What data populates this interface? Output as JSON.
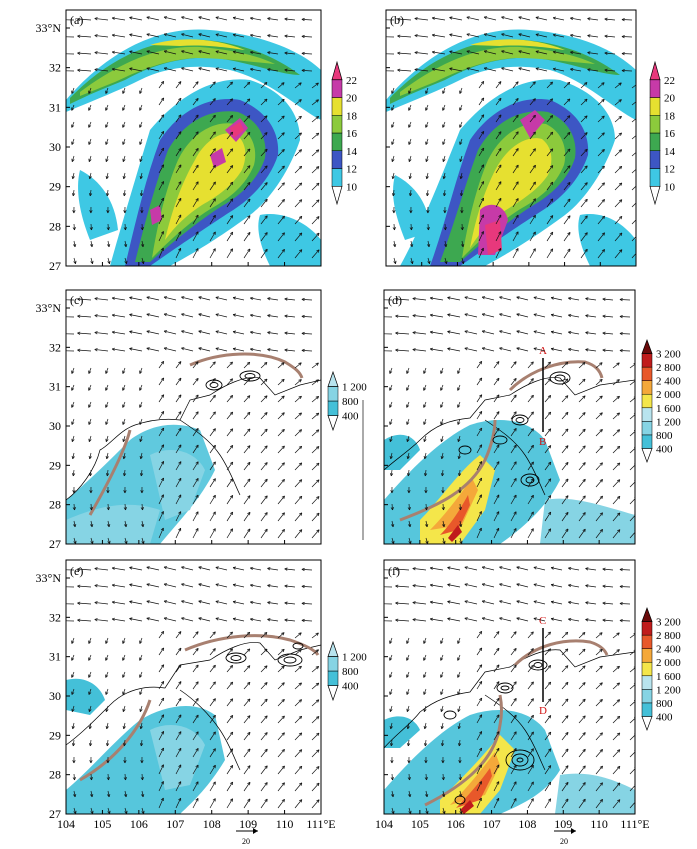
{
  "figure": {
    "lat_labels": [
      "33°N",
      "32",
      "31",
      "30",
      "29",
      "28",
      "27"
    ],
    "lon_labels": [
      "104",
      "105",
      "106",
      "107",
      "108",
      "109",
      "110",
      "111°E"
    ],
    "ref_vector_label": "20",
    "colorbar_wind": [
      "22",
      "20",
      "18",
      "16",
      "14",
      "12",
      "10"
    ],
    "colorbar_small": [
      "1 200",
      "800",
      "400"
    ],
    "colorbar_large": [
      "3 200",
      "2 800",
      "2 400",
      "2 000",
      "1 600",
      "1 200",
      "800",
      "400"
    ],
    "colors": {
      "wind": [
        "#3ec8e4",
        "#3d56c4",
        "#3da850",
        "#8cca3c",
        "#e6e030",
        "#c63aa8",
        "#e8387c"
      ],
      "heat": [
        "#44c0d8",
        "#86d4e4",
        "#b8e4ee",
        "#f4e64a",
        "#f4a83a",
        "#e8582a",
        "#c01c1c",
        "#6a0a0a"
      ],
      "shear_line": "#a88070"
    }
  },
  "panels": [
    {
      "id": "a",
      "label": "(a)",
      "section_labels": []
    },
    {
      "id": "b",
      "label": "(b)",
      "section_labels": []
    },
    {
      "id": "c",
      "label": "(c)",
      "section_labels": []
    },
    {
      "id": "d",
      "label": "(d)",
      "section_labels": [
        "A",
        "B"
      ]
    },
    {
      "id": "e",
      "label": "(e)",
      "section_labels": []
    },
    {
      "id": "f",
      "label": "(f)",
      "section_labels": [
        "C",
        "D"
      ]
    }
  ]
}
